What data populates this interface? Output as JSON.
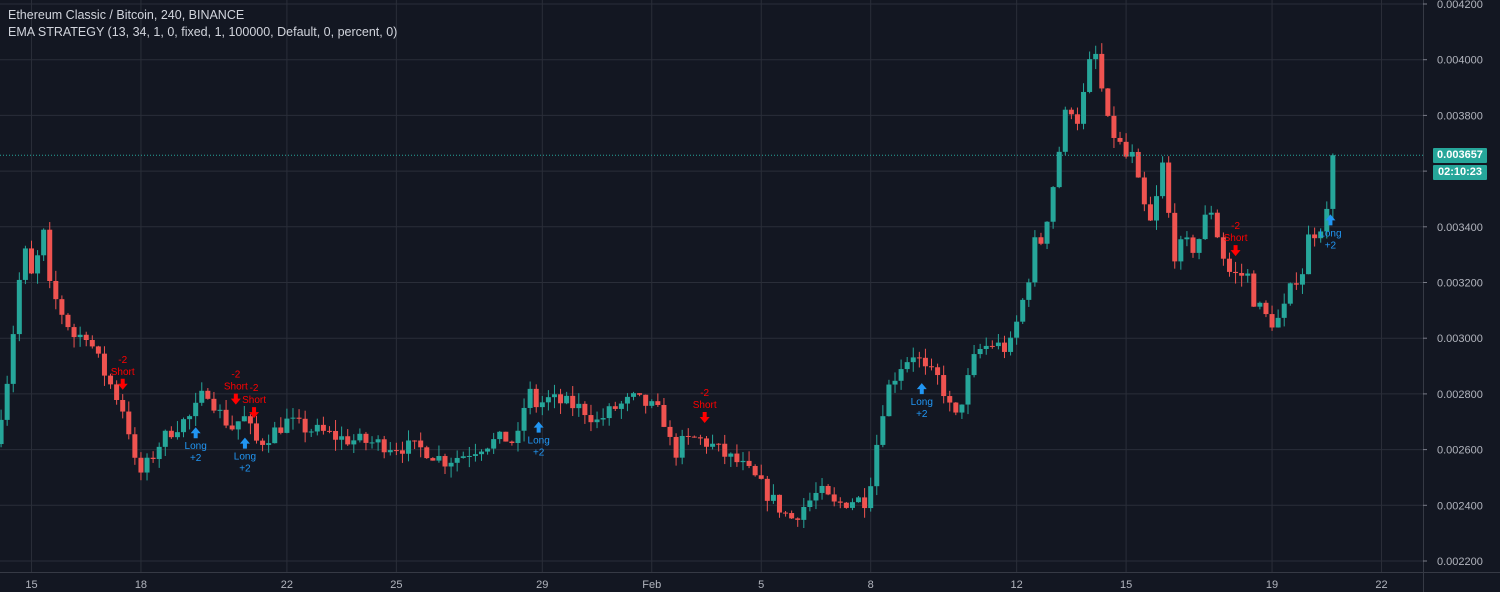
{
  "header": {
    "symbol_line": "Ethereum Classic / Bitcoin, 240, BINANCE",
    "strategy_line": "EMA STRATEGY (13, 34, 1, 0, fixed, 1, 100000, Default, 0, percent, 0)"
  },
  "price_axis": {
    "current_price": "0.003657",
    "countdown": "02:10:23"
  },
  "colors": {
    "background": "#131722",
    "grid": "#2a2e39",
    "up": "#26a69a",
    "down": "#ef5350",
    "long_signal": "#2196f3",
    "short_signal": "#ff0000",
    "axis_text": "#b2b5be"
  },
  "chart_data": {
    "type": "candlestick",
    "title": "Ethereum Classic / Bitcoin, 240, BINANCE",
    "x_ticks": [
      "15",
      "18",
      "22",
      "25",
      "29",
      "Feb",
      "5",
      "8",
      "12",
      "15",
      "19",
      "22"
    ],
    "y_ticks": [
      "0.004200",
      "0.004000",
      "0.003800",
      "0.003600",
      "0.003400",
      "0.003200",
      "0.003000",
      "0.002800",
      "0.002600",
      "0.002400",
      "0.002200"
    ],
    "y_range": [
      0.00218,
      0.0042
    ],
    "last_price": 0.003657,
    "grid": true,
    "close_path": [
      [
        14.0,
        0.00262
      ],
      [
        14.4,
        0.0029
      ],
      [
        14.6,
        0.00315
      ],
      [
        14.8,
        0.00332
      ],
      [
        15.0,
        0.00322
      ],
      [
        15.2,
        0.0033
      ],
      [
        15.35,
        0.00338
      ],
      [
        15.5,
        0.00318
      ],
      [
        15.8,
        0.0031
      ],
      [
        16.2,
        0.003
      ],
      [
        16.5,
        0.00302
      ],
      [
        16.9,
        0.0029
      ],
      [
        17.3,
        0.0028
      ],
      [
        17.6,
        0.00272
      ],
      [
        17.9,
        0.0025
      ],
      [
        18.2,
        0.00255
      ],
      [
        18.5,
        0.00262
      ],
      [
        18.9,
        0.00268
      ],
      [
        19.4,
        0.00272
      ],
      [
        19.8,
        0.00282
      ],
      [
        20.2,
        0.00272
      ],
      [
        20.5,
        0.00268
      ],
      [
        20.8,
        0.00272
      ],
      [
        21.2,
        0.00262
      ],
      [
        21.6,
        0.00266
      ],
      [
        22.0,
        0.0027
      ],
      [
        22.4,
        0.00268
      ],
      [
        23.0,
        0.00266
      ],
      [
        23.5,
        0.00264
      ],
      [
        24.0,
        0.00263
      ],
      [
        24.6,
        0.00262
      ],
      [
        25.2,
        0.00261
      ],
      [
        25.8,
        0.0026
      ],
      [
        26.3,
        0.00256
      ],
      [
        26.8,
        0.00258
      ],
      [
        27.4,
        0.00262
      ],
      [
        28.0,
        0.00264
      ],
      [
        28.3,
        0.00262
      ],
      [
        28.6,
        0.00282
      ],
      [
        28.8,
        0.00276
      ],
      [
        29.2,
        0.00278
      ],
      [
        29.8,
        0.00276
      ],
      [
        30.2,
        0.00274
      ],
      [
        30.5,
        0.0027
      ],
      [
        31.0,
        0.00275
      ],
      [
        31.5,
        0.00278
      ],
      [
        31.9,
        0.00276
      ],
      [
        32.3,
        0.00272
      ],
      [
        32.6,
        0.00258
      ],
      [
        32.8,
        0.00262
      ],
      [
        33.2,
        0.00264
      ],
      [
        33.6,
        0.00262
      ],
      [
        34.0,
        0.00258
      ],
      [
        34.4,
        0.00255
      ],
      [
        34.8,
        0.0025
      ],
      [
        35.3,
        0.00242
      ],
      [
        35.8,
        0.00235
      ],
      [
        36.2,
        0.0024
      ],
      [
        36.6,
        0.00245
      ],
      [
        37.0,
        0.0024
      ],
      [
        37.5,
        0.00242
      ],
      [
        37.9,
        0.00242
      ],
      [
        38.4,
        0.0028
      ],
      [
        38.8,
        0.0029
      ],
      [
        39.2,
        0.00295
      ],
      [
        39.5,
        0.00288
      ],
      [
        39.9,
        0.00285
      ],
      [
        40.3,
        0.0027
      ],
      [
        40.6,
        0.00282
      ],
      [
        40.9,
        0.00295
      ],
      [
        41.3,
        0.00298
      ],
      [
        41.8,
        0.00296
      ],
      [
        42.1,
        0.0031
      ],
      [
        42.3,
        0.0032
      ],
      [
        42.5,
        0.00334
      ],
      [
        42.7,
        0.00335
      ],
      [
        43.0,
        0.00355
      ],
      [
        43.2,
        0.0037
      ],
      [
        43.4,
        0.00385
      ],
      [
        43.7,
        0.00378
      ],
      [
        44.0,
        0.00398
      ],
      [
        44.2,
        0.00402
      ],
      [
        44.45,
        0.00378
      ],
      [
        44.8,
        0.0037
      ],
      [
        45.0,
        0.00365
      ],
      [
        45.2,
        0.00365
      ],
      [
        45.4,
        0.0035
      ],
      [
        45.7,
        0.0034
      ],
      [
        46.0,
        0.00362
      ],
      [
        46.3,
        0.0033
      ],
      [
        46.6,
        0.00334
      ],
      [
        46.9,
        0.00332
      ],
      [
        47.3,
        0.00348
      ],
      [
        47.6,
        0.00332
      ],
      [
        47.8,
        0.00324
      ],
      [
        48.1,
        0.00322
      ],
      [
        48.3,
        0.00324
      ],
      [
        48.5,
        0.00314
      ],
      [
        48.8,
        0.00308
      ],
      [
        49.1,
        0.00305
      ],
      [
        49.4,
        0.00312
      ],
      [
        49.6,
        0.00322
      ],
      [
        49.8,
        0.00322
      ],
      [
        50.0,
        0.00336
      ],
      [
        50.3,
        0.0034
      ],
      [
        50.55,
        0.00346
      ],
      [
        50.75,
        0.003657
      ]
    ],
    "signals": [
      {
        "type": "short",
        "label": "Short",
        "qty": "-2",
        "x": 17.5
      },
      {
        "type": "long",
        "label": "Long",
        "qty": "+2",
        "x": 19.5
      },
      {
        "type": "short",
        "label": "Short",
        "qty": "-2",
        "x": 20.6
      },
      {
        "type": "long",
        "label": "Long",
        "qty": "+2",
        "x": 20.85
      },
      {
        "type": "short",
        "label": "Short",
        "qty": "-2",
        "x": 21.1
      },
      {
        "type": "long",
        "label": "Long",
        "qty": "+2",
        "x": 28.9
      },
      {
        "type": "short",
        "label": "Short",
        "qty": "-2",
        "x": 33.45
      },
      {
        "type": "long",
        "label": "Long",
        "qty": "+2",
        "x": 39.4
      },
      {
        "type": "short",
        "label": "Short",
        "qty": "-2",
        "x": 48.0
      },
      {
        "type": "long",
        "label": "Long",
        "qty": "+2",
        "x": 50.6
      }
    ]
  }
}
